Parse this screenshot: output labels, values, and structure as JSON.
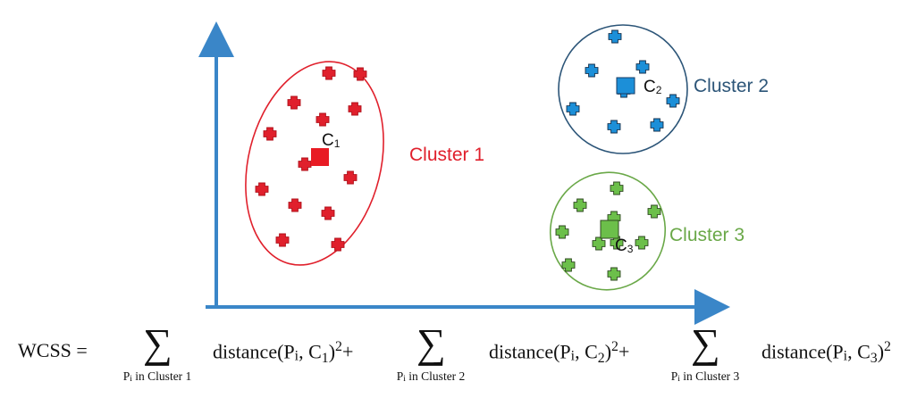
{
  "colors": {
    "axis": "#3a86c8",
    "cluster1": "#e0202c",
    "cluster2": "#2c5578",
    "cluster2_points": "#1c8fd8",
    "cluster3": "#6aa848",
    "cluster3_points": "#6cbf4a",
    "text": "#111111"
  },
  "clusters": [
    {
      "label": "Cluster 1",
      "centroid_label": "C",
      "centroid_sub": "1"
    },
    {
      "label": "Cluster 2",
      "centroid_label": "C",
      "centroid_sub": "2"
    },
    {
      "label": "Cluster 3",
      "centroid_label": "C",
      "centroid_sub": "3"
    }
  ],
  "formula": {
    "lhs": "WCSS =",
    "sigma": "∑",
    "term_word": "distance",
    "point_symbol": "P",
    "point_index": "i",
    "centroid_symbol": "C",
    "exponent": "2",
    "plus": "+",
    "under_text": " in ",
    "terms": [
      {
        "cluster_name": "Cluster 1",
        "centroid_index": "1"
      },
      {
        "cluster_name": "Cluster 2",
        "centroid_index": "2"
      },
      {
        "cluster_name": "Cluster 3",
        "centroid_index": "3"
      }
    ]
  }
}
